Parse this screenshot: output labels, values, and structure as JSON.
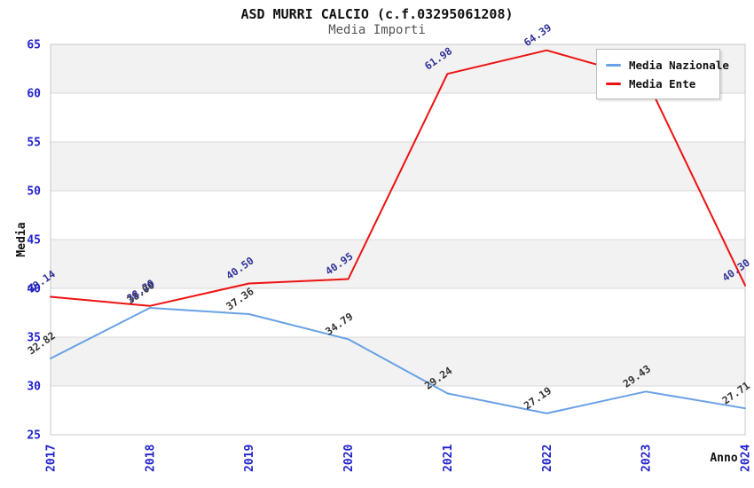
{
  "chart_data": {
    "type": "line",
    "title": "ASD MURRI CALCIO (c.f.03295061208)",
    "subtitle": "Media Importi",
    "xlabel": "Anno",
    "ylabel": "Media",
    "categories": [
      "2017",
      "2018",
      "2019",
      "2020",
      "2021",
      "2022",
      "2023",
      "2024"
    ],
    "series": [
      {
        "name": "Media Nazionale",
        "color": "#68a1e5",
        "label_color": "#333333",
        "values": [
          32.82,
          38.0,
          37.36,
          34.79,
          29.24,
          27.19,
          29.43,
          27.71
        ],
        "labels": [
          "32.82",
          "38.00",
          "37.36",
          "34.79",
          "29.24",
          "27.19",
          "29.43",
          "27.71"
        ]
      },
      {
        "name": "Media Ente",
        "color": "#ee1111",
        "label_color": "#333399",
        "values": [
          39.14,
          38.2,
          40.5,
          40.95,
          61.98,
          64.39,
          61.5,
          40.3
        ],
        "labels": [
          "39.14",
          "38.20",
          "40.50",
          "40.95",
          "61.98",
          "64.39",
          null,
          "40.30"
        ]
      }
    ],
    "ylim": [
      25,
      65
    ],
    "ytick_step": 5,
    "yticks": [
      "65",
      "60",
      "55",
      "50",
      "45",
      "40",
      "35",
      "30",
      "25"
    ],
    "grid": true,
    "legend_position": "top-right",
    "colors": {
      "tick_label": "#2222cc",
      "axis_title": "#111111",
      "band": "#f2f2f2",
      "gridline": "#d8d8d8",
      "frame": "#c8c8c8"
    }
  }
}
